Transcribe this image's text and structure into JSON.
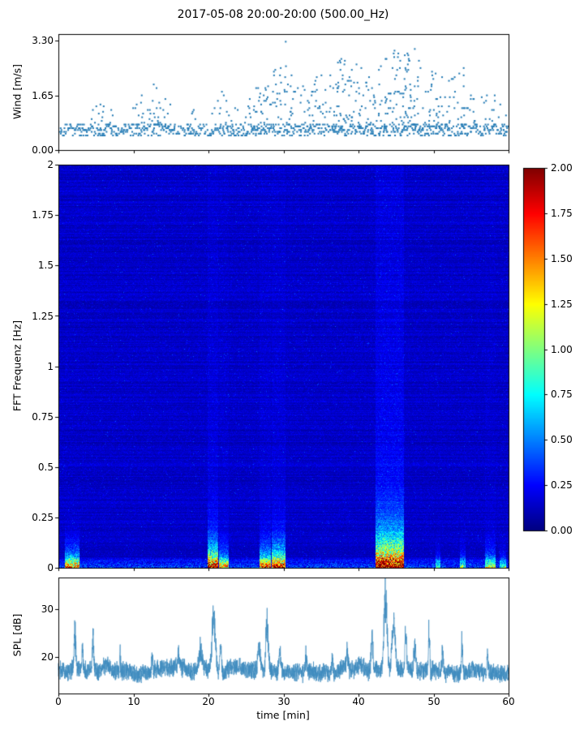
{
  "figure": {
    "title": "2017-05-08 20:00-20:00 (500.00_Hz)",
    "xlabel": "time [min]",
    "xticks": [
      "0",
      "10",
      "20",
      "30",
      "40",
      "50",
      "60"
    ],
    "background": "#ffffff"
  },
  "chart_data": [
    {
      "type": "scatter",
      "name": "wind-speed",
      "ylabel": "Wind [m/s]",
      "yticks": [
        "3.30",
        "1.65",
        "0.00"
      ],
      "ylim": [
        0,
        3.5
      ],
      "xlim": [
        0,
        60
      ],
      "marker_color": "#2079b4",
      "baseline_band": [
        0.42,
        0.8
      ],
      "envelope_t": [
        0,
        2,
        4,
        6,
        8,
        10,
        12,
        14,
        16,
        18,
        20,
        22,
        24,
        26,
        28,
        30,
        32,
        34,
        36,
        38,
        40,
        42,
        44,
        46,
        48,
        50,
        52,
        54,
        56,
        58,
        60
      ],
      "envelope_max": [
        0.8,
        0.9,
        1.3,
        1.5,
        1.1,
        1.5,
        2.0,
        2.1,
        1.1,
        1.4,
        1.0,
        1.9,
        1.2,
        1.8,
        2.3,
        2.6,
        2.2,
        2.3,
        2.4,
        2.8,
        2.6,
        2.2,
        2.9,
        3.0,
        2.8,
        2.4,
        2.2,
        2.5,
        1.5,
        1.9,
        1.2
      ],
      "outliers": [
        [
          30.3,
          3.27
        ],
        [
          44.8,
          3.0
        ],
        [
          47.5,
          3.05
        ]
      ]
    },
    {
      "type": "heatmap",
      "name": "fft-spectrogram",
      "ylabel": "FFT Frequenz [Hz]",
      "yticks": [
        "2",
        "1.75",
        "1.5",
        "1.25",
        "1",
        "0.75",
        "0.5",
        "0.25",
        "0"
      ],
      "ylim": [
        0,
        2
      ],
      "xlim": [
        0,
        60
      ],
      "colormap": "jet",
      "clim": [
        0,
        2
      ],
      "colorbar_ticks": [
        "2.00",
        "1.75",
        "1.50",
        "1.25",
        "1.00",
        "0.75",
        "0.50",
        "0.25",
        "0.00"
      ],
      "noise_base": 0.06,
      "noise_amp": 0.2,
      "bottom_band": {
        "fmax": 0.05,
        "boost": 0.35
      },
      "events": [
        {
          "t0": 0.8,
          "t1": 2.8,
          "amp": 1.5,
          "fscale": 0.055,
          "col": 0
        },
        {
          "t0": 19.8,
          "t1": 21.2,
          "amp": 1.9,
          "fscale": 0.075,
          "col": 0.07
        },
        {
          "t0": 21.4,
          "t1": 22.6,
          "amp": 1.25,
          "fscale": 0.055,
          "col": 0.03
        },
        {
          "t0": 26.8,
          "t1": 28.3,
          "amp": 1.5,
          "fscale": 0.06,
          "col": 0.04
        },
        {
          "t0": 28.4,
          "t1": 30.2,
          "amp": 1.7,
          "fscale": 0.07,
          "col": 0.05
        },
        {
          "t0": 42.2,
          "t1": 46.0,
          "amp": 2.0,
          "fscale": 0.11,
          "col": 0.13
        },
        {
          "t0": 50.2,
          "t1": 50.9,
          "amp": 0.7,
          "fscale": 0.04,
          "col": 0
        },
        {
          "t0": 53.5,
          "t1": 54.2,
          "amp": 0.8,
          "fscale": 0.045,
          "col": 0
        },
        {
          "t0": 56.8,
          "t1": 58.2,
          "amp": 1.0,
          "fscale": 0.05,
          "col": 0.02
        },
        {
          "t0": 58.8,
          "t1": 59.6,
          "amp": 0.7,
          "fscale": 0.04,
          "col": 0
        }
      ]
    },
    {
      "type": "line",
      "name": "spl",
      "ylabel": "SPL [dB]",
      "yticks": [
        "30",
        "20"
      ],
      "ylim": [
        12.5,
        36.5
      ],
      "xlim": [
        0,
        60
      ],
      "line_color": "#3f8cbf",
      "baseline": 17.2,
      "noise_amp": 2.2,
      "peaks": [
        [
          2.2,
          26.5,
          0.15
        ],
        [
          3.2,
          23,
          0.1
        ],
        [
          4.6,
          25.5,
          0.12
        ],
        [
          8.2,
          21.5,
          0.1
        ],
        [
          12.5,
          21.5,
          0.1
        ],
        [
          16,
          21.5,
          0.1
        ],
        [
          19,
          22.5,
          0.3
        ],
        [
          20.7,
          30.5,
          0.35
        ],
        [
          21.6,
          24,
          0.15
        ],
        [
          26.8,
          22.5,
          0.3
        ],
        [
          27.8,
          28.5,
          0.25
        ],
        [
          29.5,
          22,
          0.2
        ],
        [
          33,
          21,
          0.15
        ],
        [
          36.5,
          21,
          0.1
        ],
        [
          38.5,
          21.5,
          0.1
        ],
        [
          41.8,
          25.5,
          0.15
        ],
        [
          43.6,
          34.5,
          0.3
        ],
        [
          44.7,
          29.5,
          0.3
        ],
        [
          46.3,
          26.5,
          0.15
        ],
        [
          47.5,
          22,
          0.2
        ],
        [
          49.4,
          27.5,
          0.12
        ],
        [
          51.2,
          22.5,
          0.15
        ],
        [
          53.8,
          26,
          0.1
        ],
        [
          57.2,
          21,
          0.1
        ]
      ]
    }
  ]
}
